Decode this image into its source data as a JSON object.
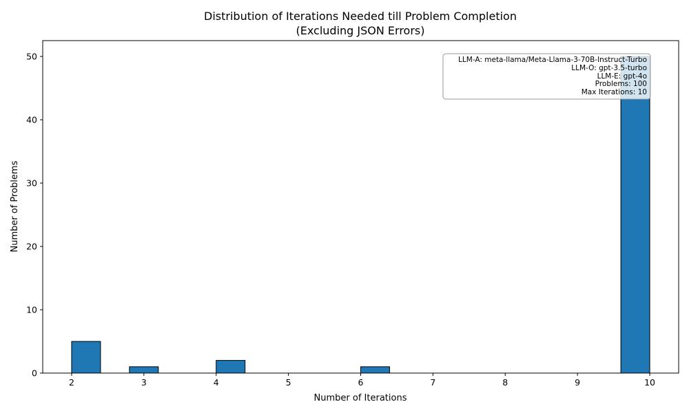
{
  "chart_data": {
    "type": "bar",
    "title": "Distribution of Iterations Needed till Problem Completion",
    "subtitle": "(Excluding JSON Errors)",
    "xlabel": "Number of Iterations",
    "ylabel": "Number of Problems",
    "xlim": [
      1.6,
      10.4
    ],
    "ylim": [
      0,
      52.5
    ],
    "xticks": [
      2,
      3,
      4,
      5,
      6,
      7,
      8,
      9,
      10
    ],
    "yticks": [
      0,
      10,
      20,
      30,
      40,
      50
    ],
    "bin_width": 0.4,
    "bars": [
      {
        "x_start": 2.0,
        "x_end": 2.4,
        "value": 5
      },
      {
        "x_start": 2.8,
        "x_end": 3.2,
        "value": 1
      },
      {
        "x_start": 4.0,
        "x_end": 4.4,
        "value": 2
      },
      {
        "x_start": 6.0,
        "x_end": 6.4,
        "value": 1
      },
      {
        "x_start": 9.6,
        "x_end": 10.0,
        "value": 50
      }
    ],
    "bar_color": "#1f77b4",
    "bar_edge_color": "#000000",
    "grid": false,
    "info_box": {
      "placement": "top-right",
      "lines": [
        "LLM-A: meta-llama/Meta-Llama-3-70B-Instruct-Turbo",
        "LLM-O: gpt-3.5-turbo",
        "LLM-E: gpt-4o",
        "Problems: 100",
        "Max Iterations: 10"
      ]
    }
  }
}
